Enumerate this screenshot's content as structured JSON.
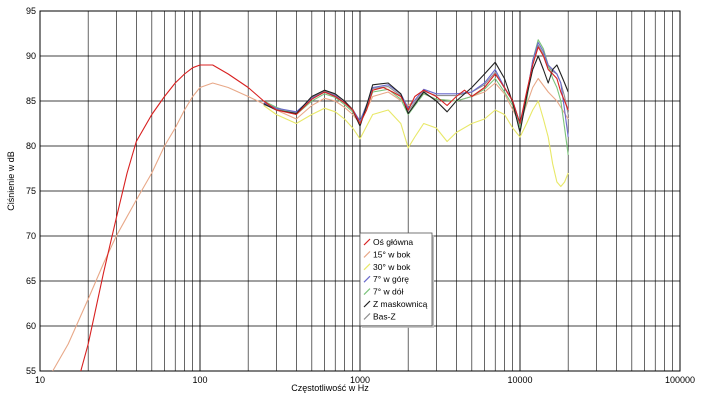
{
  "chart_data": {
    "type": "line",
    "title": "",
    "xlabel": "Częstotliwość w Hz",
    "ylabel": "Ciśnienie w dB",
    "x_scale": "log",
    "xlim": [
      10,
      100000
    ],
    "ylim": [
      55,
      95
    ],
    "x_ticks": [
      10,
      100,
      1000,
      10000,
      100000
    ],
    "x_tick_labels": [
      "10",
      "100",
      "1000",
      "10000",
      "100000"
    ],
    "y_ticks": [
      55,
      60,
      65,
      70,
      75,
      80,
      85,
      90,
      95
    ],
    "y_tick_labels": [
      "55",
      "60",
      "65",
      "70",
      "75",
      "80",
      "85",
      "90",
      "95"
    ],
    "grid": true,
    "legend_position": "center-right",
    "series": [
      {
        "name": "Oś główna",
        "color": "#d82020",
        "points": [
          [
            18,
            55
          ],
          [
            20,
            58
          ],
          [
            25,
            66
          ],
          [
            30,
            72
          ],
          [
            35,
            77
          ],
          [
            40,
            80.5
          ],
          [
            50,
            83.5
          ],
          [
            60,
            85.5
          ],
          [
            70,
            87
          ],
          [
            80,
            88
          ],
          [
            90,
            88.7
          ],
          [
            100,
            89
          ],
          [
            120,
            89
          ],
          [
            150,
            88
          ],
          [
            200,
            86.5
          ],
          [
            250,
            85
          ],
          [
            300,
            84
          ],
          [
            400,
            83.5
          ],
          [
            500,
            85.2
          ],
          [
            600,
            86
          ],
          [
            700,
            85.5
          ],
          [
            800,
            84.8
          ],
          [
            900,
            84
          ],
          [
            1000,
            82.5
          ],
          [
            1100,
            84
          ],
          [
            1200,
            86.2
          ],
          [
            1400,
            86.5
          ],
          [
            1600,
            86
          ],
          [
            1800,
            85.5
          ],
          [
            2000,
            84
          ],
          [
            2200,
            85.5
          ],
          [
            2500,
            86.2
          ],
          [
            3000,
            85.5
          ],
          [
            3500,
            84.5
          ],
          [
            4000,
            85.5
          ],
          [
            4500,
            86.2
          ],
          [
            5000,
            85.5
          ],
          [
            6000,
            86.5
          ],
          [
            7000,
            88
          ],
          [
            8000,
            86.5
          ],
          [
            9000,
            85
          ],
          [
            10000,
            82.5
          ],
          [
            11000,
            86
          ],
          [
            12000,
            89
          ],
          [
            13000,
            91
          ],
          [
            14000,
            90
          ],
          [
            15000,
            88.5
          ],
          [
            16000,
            88
          ],
          [
            17000,
            87.5
          ],
          [
            18000,
            86
          ],
          [
            19000,
            85
          ],
          [
            20000,
            84
          ]
        ]
      },
      {
        "name": "15° w bok",
        "color": "#e8a888",
        "points": [
          [
            12,
            55
          ],
          [
            15,
            58
          ],
          [
            20,
            63
          ],
          [
            25,
            67
          ],
          [
            30,
            70
          ],
          [
            40,
            74
          ],
          [
            50,
            77
          ],
          [
            60,
            80
          ],
          [
            70,
            82
          ],
          [
            80,
            84
          ],
          [
            90,
            85.5
          ],
          [
            100,
            86.5
          ],
          [
            120,
            87
          ],
          [
            150,
            86.5
          ],
          [
            200,
            85.5
          ],
          [
            300,
            84
          ],
          [
            400,
            83
          ],
          [
            500,
            84.5
          ],
          [
            600,
            85.3
          ],
          [
            700,
            85
          ],
          [
            800,
            84.3
          ],
          [
            900,
            83.5
          ],
          [
            1000,
            82.5
          ],
          [
            1200,
            85.5
          ],
          [
            1500,
            86
          ],
          [
            2000,
            84.5
          ],
          [
            2500,
            85.8
          ],
          [
            3000,
            85.2
          ],
          [
            4000,
            85
          ],
          [
            5000,
            85.5
          ],
          [
            6000,
            86
          ],
          [
            7000,
            87
          ],
          [
            8000,
            85.8
          ],
          [
            10000,
            82.5
          ],
          [
            12000,
            86.5
          ],
          [
            13000,
            87.5
          ],
          [
            15000,
            86
          ],
          [
            17000,
            85
          ],
          [
            20000,
            83
          ]
        ]
      },
      {
        "name": "30° w bok",
        "color": "#e8e868",
        "points": [
          [
            250,
            84.5
          ],
          [
            300,
            83.5
          ],
          [
            400,
            82.5
          ],
          [
            500,
            83.5
          ],
          [
            600,
            84.2
          ],
          [
            700,
            83.8
          ],
          [
            800,
            83
          ],
          [
            900,
            82
          ],
          [
            1000,
            80.8
          ],
          [
            1200,
            83.5
          ],
          [
            1500,
            84
          ],
          [
            1800,
            82.5
          ],
          [
            2000,
            79.8
          ],
          [
            2200,
            81
          ],
          [
            2500,
            82.5
          ],
          [
            3000,
            82
          ],
          [
            3500,
            80.5
          ],
          [
            4000,
            81.5
          ],
          [
            5000,
            82.5
          ],
          [
            6000,
            83
          ],
          [
            7000,
            84
          ],
          [
            8000,
            83.5
          ],
          [
            9000,
            82
          ],
          [
            10000,
            81
          ],
          [
            11000,
            82.5
          ],
          [
            12000,
            84
          ],
          [
            13000,
            85
          ],
          [
            14000,
            83
          ],
          [
            15000,
            81
          ],
          [
            16000,
            78
          ],
          [
            17000,
            76
          ],
          [
            18000,
            75.5
          ],
          [
            19000,
            76
          ],
          [
            20000,
            77
          ]
        ]
      },
      {
        "name": "7° w górę",
        "color": "#6a6acc",
        "points": [
          [
            250,
            84.8
          ],
          [
            300,
            84.2
          ],
          [
            400,
            83.8
          ],
          [
            500,
            85.3
          ],
          [
            600,
            86
          ],
          [
            700,
            85.6
          ],
          [
            800,
            84.8
          ],
          [
            900,
            84
          ],
          [
            1000,
            82.8
          ],
          [
            1100,
            84.5
          ],
          [
            1200,
            86.5
          ],
          [
            1500,
            86.8
          ],
          [
            1800,
            85.8
          ],
          [
            2000,
            84.2
          ],
          [
            2500,
            86.3
          ],
          [
            3000,
            85.8
          ],
          [
            4000,
            85.8
          ],
          [
            5000,
            86
          ],
          [
            6000,
            87
          ],
          [
            7000,
            88.5
          ],
          [
            8000,
            86.5
          ],
          [
            9000,
            85
          ],
          [
            10000,
            82.5
          ],
          [
            11000,
            85.5
          ],
          [
            12000,
            89.5
          ],
          [
            13000,
            91.5
          ],
          [
            14000,
            90.5
          ],
          [
            15000,
            89
          ],
          [
            16000,
            88.5
          ],
          [
            17000,
            88
          ],
          [
            18000,
            87
          ],
          [
            19000,
            84
          ],
          [
            20000,
            81
          ]
        ]
      },
      {
        "name": "7° w dół",
        "color": "#7cc47c",
        "points": [
          [
            250,
            85
          ],
          [
            300,
            84.3
          ],
          [
            400,
            83.5
          ],
          [
            500,
            85
          ],
          [
            600,
            85.8
          ],
          [
            700,
            85.4
          ],
          [
            800,
            84.6
          ],
          [
            900,
            83.8
          ],
          [
            1000,
            82.6
          ],
          [
            1100,
            84.2
          ],
          [
            1200,
            86
          ],
          [
            1500,
            86.3
          ],
          [
            1800,
            85.2
          ],
          [
            2000,
            83.5
          ],
          [
            2500,
            85.8
          ],
          [
            3000,
            85.2
          ],
          [
            4000,
            85
          ],
          [
            5000,
            85.5
          ],
          [
            6000,
            86.3
          ],
          [
            7000,
            87.5
          ],
          [
            8000,
            86
          ],
          [
            9000,
            84.5
          ],
          [
            10000,
            82
          ],
          [
            11000,
            85
          ],
          [
            12000,
            89.5
          ],
          [
            13000,
            91.8
          ],
          [
            14000,
            90.8
          ],
          [
            15000,
            89
          ],
          [
            16000,
            87.5
          ],
          [
            17000,
            86.5
          ],
          [
            18000,
            85
          ],
          [
            19000,
            82
          ],
          [
            20000,
            79
          ]
        ]
      },
      {
        "name": "Z maskownicą",
        "color": "#222222",
        "points": [
          [
            250,
            84.7
          ],
          [
            300,
            84
          ],
          [
            400,
            83.6
          ],
          [
            500,
            85.5
          ],
          [
            600,
            86.2
          ],
          [
            700,
            85.8
          ],
          [
            800,
            85
          ],
          [
            900,
            84
          ],
          [
            1000,
            82.2
          ],
          [
            1100,
            84.5
          ],
          [
            1200,
            86.8
          ],
          [
            1500,
            87
          ],
          [
            1800,
            85.8
          ],
          [
            2000,
            83.6
          ],
          [
            2500,
            86
          ],
          [
            3000,
            85
          ],
          [
            3500,
            83.8
          ],
          [
            4000,
            85
          ],
          [
            5000,
            86.5
          ],
          [
            6000,
            88
          ],
          [
            7000,
            89.3
          ],
          [
            8000,
            87.5
          ],
          [
            9000,
            84.8
          ],
          [
            10000,
            81.5
          ],
          [
            11000,
            85.5
          ],
          [
            12000,
            88.5
          ],
          [
            13000,
            90
          ],
          [
            14000,
            88.5
          ],
          [
            15000,
            87
          ],
          [
            16000,
            88.5
          ],
          [
            17000,
            89
          ],
          [
            18000,
            88
          ],
          [
            19000,
            87
          ],
          [
            20000,
            86
          ]
        ]
      },
      {
        "name": "Bas-Z",
        "color": "#909090",
        "points": [
          [
            250,
            84.6
          ],
          [
            300,
            84.1
          ],
          [
            400,
            83.7
          ],
          [
            500,
            85.4
          ],
          [
            600,
            86.1
          ],
          [
            700,
            85.7
          ],
          [
            800,
            85
          ],
          [
            900,
            84.1
          ],
          [
            1000,
            82.7
          ],
          [
            1100,
            84.6
          ],
          [
            1200,
            86.4
          ],
          [
            1500,
            86.6
          ],
          [
            1800,
            85.6
          ],
          [
            2000,
            83.9
          ],
          [
            2500,
            86.1
          ],
          [
            3000,
            85.6
          ],
          [
            4000,
            85.6
          ],
          [
            5000,
            86
          ],
          [
            6000,
            86.8
          ],
          [
            7000,
            88.2
          ],
          [
            8000,
            86.4
          ],
          [
            9000,
            85
          ],
          [
            10000,
            82.3
          ],
          [
            11000,
            85.6
          ],
          [
            12000,
            89.3
          ],
          [
            13000,
            91.2
          ],
          [
            14000,
            90.2
          ],
          [
            15000,
            88.8
          ],
          [
            16000,
            88.3
          ],
          [
            17000,
            88
          ],
          [
            18000,
            87
          ],
          [
            19000,
            85.5
          ],
          [
            20000,
            83.5
          ]
        ]
      }
    ]
  }
}
